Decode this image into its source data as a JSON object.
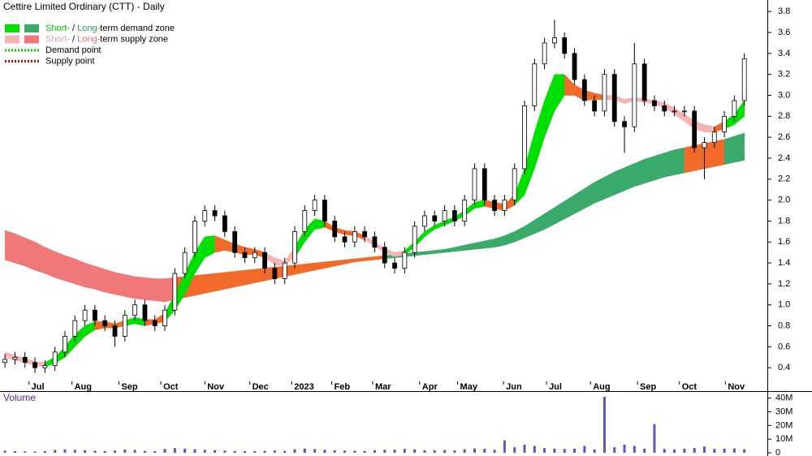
{
  "chart_data": {
    "type": "candlestick",
    "title": "Cettire Limited Ordinary (CTT) - Daily",
    "legend": [
      {
        "parts": [
          "Short-",
          " / ",
          "Long-",
          "term demand zone"
        ],
        "part_colors": [
          "#00d000",
          "#000000",
          "#2e9e5e",
          "#000000"
        ],
        "swatches": [
          "#00e000",
          "#3aaa6a"
        ]
      },
      {
        "parts": [
          "Short-",
          " / ",
          "Long-",
          "term supply zone"
        ],
        "part_colors": [
          "#f5a0a0",
          "#000000",
          "#f07070",
          "#000000"
        ],
        "swatches": [
          "#f7b4b4",
          "#f07878"
        ]
      },
      {
        "parts": [
          "Demand point"
        ],
        "part_colors": [
          "#000000"
        ],
        "dots": "#00d000"
      },
      {
        "parts": [
          "Supply point"
        ],
        "part_colors": [
          "#000000"
        ],
        "dots": "#e00000"
      }
    ],
    "open": [
      0.45,
      0.48,
      0.5,
      0.45,
      0.4,
      0.42,
      0.55,
      0.7,
      0.85,
      0.95,
      0.85,
      0.8,
      0.7,
      0.9,
      1.0,
      0.85,
      0.8,
      0.95,
      1.3,
      1.5,
      1.8,
      1.9,
      1.85,
      1.7,
      1.5,
      1.45,
      1.5,
      1.35,
      1.25,
      1.4,
      1.7,
      1.9,
      2.0,
      1.8,
      1.65,
      1.6,
      1.7,
      1.65,
      1.55,
      1.4,
      1.35,
      1.5,
      1.75,
      1.85,
      1.8,
      1.9,
      1.8,
      2.0,
      2.3,
      2.0,
      1.9,
      2.0,
      2.3,
      2.9,
      3.3,
      3.5,
      3.55,
      3.4,
      3.15,
      2.95,
      2.85,
      3.2,
      2.75,
      2.7,
      3.3,
      2.95,
      2.9,
      2.85,
      2.85,
      2.85,
      2.5,
      2.55,
      2.65,
      2.8,
      2.95
    ],
    "high": [
      0.53,
      0.55,
      0.55,
      0.5,
      0.47,
      0.6,
      0.75,
      0.9,
      1.0,
      1.0,
      0.9,
      0.85,
      0.95,
      1.05,
      1.05,
      0.9,
      1.0,
      1.35,
      1.55,
      1.85,
      1.95,
      1.95,
      1.9,
      1.75,
      1.55,
      1.55,
      1.55,
      1.4,
      1.45,
      1.75,
      1.95,
      2.05,
      2.05,
      1.85,
      1.7,
      1.75,
      1.75,
      1.7,
      1.6,
      1.45,
      1.55,
      1.8,
      1.9,
      1.9,
      1.95,
      1.95,
      2.05,
      2.35,
      2.35,
      2.05,
      2.05,
      2.35,
      2.95,
      3.35,
      3.55,
      3.72,
      3.6,
      3.45,
      3.2,
      3.0,
      3.25,
      3.25,
      2.8,
      3.5,
      3.35,
      3.0,
      2.95,
      2.9,
      2.9,
      2.9,
      2.6,
      2.7,
      2.85,
      3.0,
      3.4
    ],
    "low": [
      0.4,
      0.43,
      0.4,
      0.35,
      0.35,
      0.37,
      0.5,
      0.65,
      0.8,
      0.8,
      0.75,
      0.6,
      0.65,
      0.85,
      0.8,
      0.75,
      0.75,
      0.9,
      1.25,
      1.45,
      1.75,
      1.8,
      1.65,
      1.45,
      1.4,
      1.4,
      1.3,
      1.2,
      1.2,
      1.35,
      1.65,
      1.85,
      1.75,
      1.6,
      1.55,
      1.55,
      1.6,
      1.5,
      1.35,
      1.3,
      1.3,
      1.45,
      1.7,
      1.75,
      1.75,
      1.75,
      1.75,
      1.95,
      1.95,
      1.85,
      1.85,
      1.95,
      2.25,
      2.85,
      3.25,
      3.45,
      3.35,
      3.1,
      2.9,
      2.8,
      2.8,
      2.7,
      2.45,
      2.65,
      2.9,
      2.85,
      2.8,
      2.8,
      2.8,
      2.45,
      2.2,
      2.5,
      2.6,
      2.75,
      2.9
    ],
    "close": [
      0.48,
      0.5,
      0.45,
      0.4,
      0.42,
      0.55,
      0.7,
      0.85,
      0.95,
      0.85,
      0.8,
      0.7,
      0.9,
      1.0,
      0.85,
      0.8,
      0.95,
      1.3,
      1.5,
      1.8,
      1.9,
      1.85,
      1.7,
      1.5,
      1.45,
      1.5,
      1.35,
      1.25,
      1.4,
      1.7,
      1.9,
      2.0,
      1.8,
      1.65,
      1.6,
      1.7,
      1.65,
      1.55,
      1.4,
      1.35,
      1.5,
      1.75,
      1.85,
      1.8,
      1.9,
      1.8,
      2.0,
      2.3,
      2.0,
      1.9,
      2.0,
      2.3,
      2.9,
      3.3,
      3.5,
      3.55,
      3.4,
      3.15,
      2.95,
      2.85,
      3.2,
      2.75,
      2.7,
      3.3,
      2.95,
      2.9,
      2.85,
      2.85,
      2.85,
      2.5,
      2.55,
      2.65,
      2.8,
      2.95,
      3.35
    ],
    "xlim": [
      -0.5,
      76.3
    ],
    "xticks": [
      {
        "value": 2.4,
        "label": "Jul"
      },
      {
        "value": 6.7,
        "label": "Aug"
      },
      {
        "value": 11.4,
        "label": "Sep"
      },
      {
        "value": 15.6,
        "label": "Oct"
      },
      {
        "value": 20,
        "label": "Nov"
      },
      {
        "value": 24.5,
        "label": "Dec"
      },
      {
        "value": 28.7,
        "label": "2023"
      },
      {
        "value": 32.7,
        "label": "Feb"
      },
      {
        "value": 36.8,
        "label": "Mar"
      },
      {
        "value": 41.5,
        "label": "Apr"
      },
      {
        "value": 45.3,
        "label": "May"
      },
      {
        "value": 49.9,
        "label": "Jun"
      },
      {
        "value": 54.2,
        "label": "Jul"
      },
      {
        "value": 58.6,
        "label": "Aug"
      },
      {
        "value": 63.3,
        "label": "Sep"
      },
      {
        "value": 67.5,
        "label": "Oct"
      },
      {
        "value": 72.1,
        "label": "Nov"
      }
    ],
    "ylim": [
      0.27,
      3.91
    ],
    "yticks": [
      0.4,
      0.6,
      0.8,
      {
        "value": 1,
        "label": "1.0"
      },
      1.2,
      1.4,
      1.6,
      1.8,
      {
        "value": 2,
        "label": "2.0"
      },
      2.2,
      2.4,
      2.6,
      2.8,
      {
        "value": 3,
        "label": "3.0"
      },
      3.2,
      3.4,
      3.6,
      3.8
    ],
    "zones": [
      {
        "upper": [
          1.71,
          1.68,
          1.64,
          1.6,
          1.55,
          1.51,
          1.47,
          1.44,
          1.4,
          1.37,
          1.34,
          1.31,
          1.29,
          1.27,
          1.26,
          1.25,
          1.25,
          1.26,
          1.27,
          1.28,
          1.29,
          1.3,
          1.31,
          1.32,
          1.33,
          1.34,
          1.35,
          1.36,
          1.37,
          1.38,
          1.39,
          1.4,
          1.41,
          1.42,
          1.43,
          1.44,
          1.45,
          1.46,
          1.47,
          1.48,
          1.49,
          1.5,
          1.51,
          1.52,
          1.53,
          1.55,
          1.57,
          1.59,
          1.61,
          1.63,
          1.66,
          1.7,
          1.75,
          1.81,
          1.87,
          1.93,
          1.99,
          2.05,
          2.11,
          2.17,
          2.22,
          2.27,
          2.31,
          2.35,
          2.39,
          2.42,
          2.45,
          2.48,
          2.5,
          2.52,
          2.54,
          2.56,
          2.58,
          2.61,
          2.64
        ],
        "lower": [
          1.43,
          1.4,
          1.37,
          1.33,
          1.3,
          1.26,
          1.23,
          1.2,
          1.17,
          1.15,
          1.12,
          1.1,
          1.08,
          1.06,
          1.05,
          1.04,
          1.03,
          1.05,
          1.07,
          1.09,
          1.11,
          1.13,
          1.15,
          1.17,
          1.19,
          1.21,
          1.23,
          1.25,
          1.27,
          1.29,
          1.31,
          1.33,
          1.35,
          1.37,
          1.39,
          1.41,
          1.42,
          1.43,
          1.44,
          1.45,
          1.46,
          1.47,
          1.48,
          1.49,
          1.5,
          1.51,
          1.52,
          1.53,
          1.54,
          1.55,
          1.57,
          1.6,
          1.64,
          1.68,
          1.72,
          1.77,
          1.82,
          1.87,
          1.92,
          1.97,
          2.01,
          2.05,
          2.09,
          2.13,
          2.16,
          2.19,
          2.22,
          2.24,
          2.26,
          2.28,
          2.3,
          2.32,
          2.34,
          2.36,
          2.38
        ],
        "state": [
          "supply",
          "supply",
          "supply",
          "supply",
          "supply",
          "supply",
          "supply",
          "supply",
          "supply",
          "supply",
          "supply",
          "supply",
          "supply",
          "supply",
          "supply",
          "supply",
          "supply",
          "neutral",
          "neutral",
          "neutral",
          "neutral",
          "neutral",
          "neutral",
          "neutral",
          "neutral",
          "neutral",
          "neutral",
          "neutral",
          "neutral",
          "neutral",
          "neutral",
          "neutral",
          "neutral",
          "neutral",
          "neutral",
          "neutral",
          "neutral",
          "neutral",
          "demand",
          "demand",
          "demand",
          "demand",
          "demand",
          "demand",
          "demand",
          "demand",
          "demand",
          "demand",
          "demand",
          "demand",
          "demand",
          "demand",
          "demand",
          "demand",
          "demand",
          "demand",
          "demand",
          "demand",
          "demand",
          "demand",
          "demand",
          "demand",
          "demand",
          "demand",
          "demand",
          "demand",
          "demand",
          "demand",
          "neutral",
          "neutral",
          "neutral",
          "neutral",
          "demand",
          "demand",
          "demand"
        ],
        "colors": {
          "demand": "#3aaa6a",
          "supply": "#f07878",
          "neutral": "#f26a2a"
        }
      },
      {
        "upper": [
          0.55,
          0.52,
          0.49,
          0.46,
          0.45,
          0.5,
          0.6,
          0.72,
          0.8,
          0.84,
          0.84,
          0.82,
          0.85,
          0.88,
          0.86,
          0.86,
          0.92,
          1.1,
          1.3,
          1.5,
          1.65,
          1.66,
          1.62,
          1.58,
          1.55,
          1.53,
          1.5,
          1.45,
          1.42,
          1.55,
          1.72,
          1.82,
          1.8,
          1.74,
          1.71,
          1.7,
          1.66,
          1.6,
          1.54,
          1.5,
          1.52,
          1.6,
          1.7,
          1.76,
          1.8,
          1.84,
          1.9,
          1.98,
          2.0,
          1.98,
          1.96,
          2.05,
          2.3,
          2.65,
          2.95,
          3.2,
          3.2,
          3.1,
          3.05,
          3.02,
          3.0,
          3.0,
          2.96,
          2.98,
          2.97,
          2.95,
          2.93,
          2.88,
          2.82,
          2.76,
          2.72,
          2.7,
          2.75,
          2.82,
          2.95
        ],
        "lower": [
          0.5,
          0.47,
          0.45,
          0.42,
          0.41,
          0.44,
          0.5,
          0.6,
          0.7,
          0.76,
          0.78,
          0.78,
          0.8,
          0.82,
          0.8,
          0.82,
          0.84,
          0.95,
          1.1,
          1.3,
          1.45,
          1.5,
          1.52,
          1.5,
          1.48,
          1.48,
          1.45,
          1.38,
          1.38,
          1.45,
          1.6,
          1.72,
          1.74,
          1.7,
          1.67,
          1.66,
          1.62,
          1.56,
          1.5,
          1.46,
          1.48,
          1.55,
          1.65,
          1.72,
          1.76,
          1.8,
          1.85,
          1.92,
          1.94,
          1.92,
          1.9,
          1.95,
          2.05,
          2.3,
          2.6,
          2.85,
          3.0,
          3.0,
          2.95,
          2.96,
          2.96,
          2.96,
          2.92,
          2.95,
          2.93,
          2.92,
          2.88,
          2.82,
          2.75,
          2.68,
          2.65,
          2.65,
          2.68,
          2.72,
          2.8
        ],
        "state": [
          "supply",
          "supply",
          "supply",
          "supply",
          "demand",
          "demand",
          "demand",
          "demand",
          "demand",
          "neutral",
          "neutral",
          "neutral",
          "demand",
          "demand",
          "neutral",
          "neutral",
          "demand",
          "demand",
          "demand",
          "demand",
          "demand",
          "neutral",
          "neutral",
          "neutral",
          "neutral",
          "neutral",
          "supply",
          "supply",
          "supply",
          "demand",
          "demand",
          "demand",
          "neutral",
          "neutral",
          "neutral",
          "neutral",
          "supply",
          "supply",
          "supply",
          "supply",
          "demand",
          "demand",
          "demand",
          "demand",
          "demand",
          "demand",
          "demand",
          "demand",
          "neutral",
          "neutral",
          "neutral",
          "demand",
          "demand",
          "demand",
          "demand",
          "demand",
          "neutral",
          "neutral",
          "neutral",
          "neutral",
          "supply",
          "supply",
          "supply",
          "supply",
          "supply",
          "supply",
          "supply",
          "supply",
          "supply",
          "supply",
          "supply",
          "neutral",
          "demand",
          "demand",
          "demand"
        ],
        "colors": {
          "demand": "#00e000",
          "supply": "#f7b4b4",
          "neutral": "#f26a2a"
        }
      }
    ],
    "volume": {
      "label": "Volume",
      "color": "#5a5ab8",
      "values": [
        1500000,
        1200000,
        1000000,
        900000,
        1300000,
        2000000,
        2500000,
        2200000,
        1800000,
        1500000,
        1300000,
        1600000,
        2400000,
        2100000,
        1400000,
        1300000,
        2800000,
        3500000,
        3000000,
        2600000,
        2200000,
        1900000,
        1600000,
        1400000,
        1200000,
        1300000,
        1500000,
        1700000,
        1400000,
        2600000,
        3100000,
        2700000,
        2200000,
        1800000,
        1600000,
        1500000,
        1400000,
        1900000,
        2100000,
        2300000,
        2800000,
        2500000,
        1900000,
        1800000,
        2000000,
        1700000,
        2600000,
        3200000,
        2900000,
        2200000,
        9000000,
        4000000,
        6000000,
        5000000,
        3500000,
        3000000,
        2800000,
        3000000,
        5000000,
        2500000,
        41000000,
        4000000,
        6000000,
        5000000,
        3000000,
        21000000,
        2800000,
        2500000,
        3000000,
        3500000,
        4500000,
        2800000,
        3000000,
        3200000,
        2600000
      ],
      "ylim": [
        0,
        44000000
      ],
      "yticks": [
        0,
        {
          "value": 10000000,
          "label": "10M"
        },
        {
          "value": 20000000,
          "label": "20M"
        },
        {
          "value": 30000000,
          "label": "30M"
        },
        {
          "value": 40000000,
          "label": "40M"
        }
      ]
    }
  }
}
